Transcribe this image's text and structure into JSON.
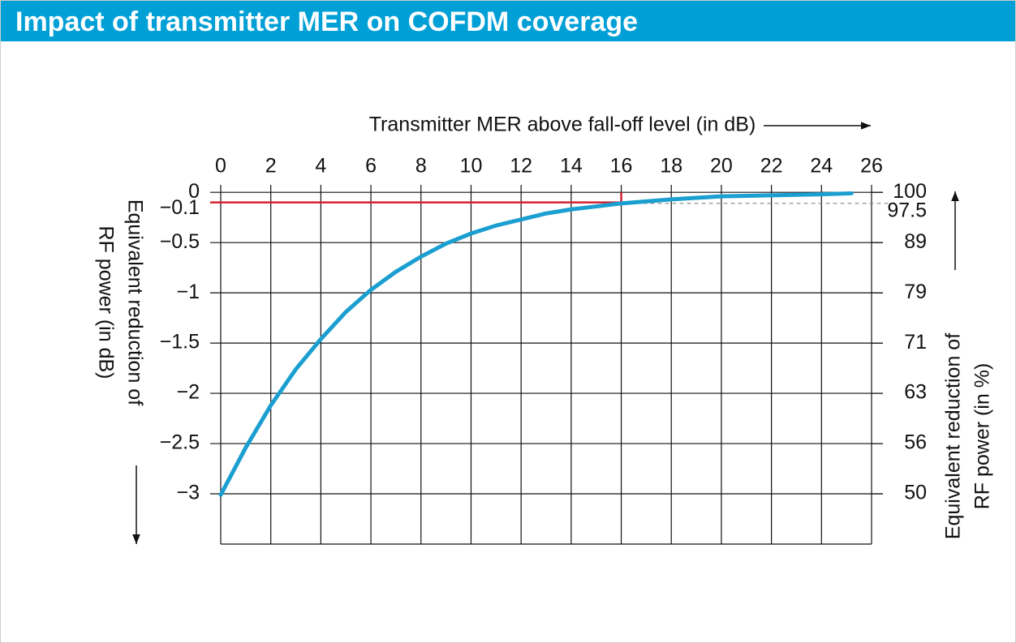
{
  "title": "Impact of transmitter MER on COFDM coverage",
  "chart_data": {
    "type": "line",
    "x_label": "Transmitter MER above fall-off level (in dB)",
    "y_label": [
      "Equivalent reduction of",
      "RF power (in dB)"
    ],
    "y2_label": [
      "Equivalent reduction of",
      "RF power (in %)"
    ],
    "x": [
      0,
      1,
      2,
      3,
      4,
      5,
      6,
      7,
      8,
      9,
      10,
      11,
      12,
      13,
      14,
      15,
      16,
      18,
      20,
      22,
      24,
      25.2
    ],
    "series": [
      {
        "color": "#1a9fd0",
        "values": [
          -3.01,
          -2.54,
          -2.12,
          -1.76,
          -1.46,
          -1.19,
          -0.97,
          -0.79,
          -0.64,
          -0.51,
          -0.41,
          -0.33,
          -0.27,
          -0.21,
          -0.17,
          -0.14,
          -0.11,
          -0.07,
          -0.04,
          -0.03,
          -0.02,
          -0.01
        ]
      }
    ],
    "xlim": [
      0,
      26
    ],
    "xticks": [
      0,
      2,
      4,
      6,
      8,
      10,
      12,
      14,
      16,
      18,
      20,
      22,
      24,
      26
    ],
    "ylim": [
      -3.5,
      0.05
    ],
    "yticks": [
      0,
      {
        "value": -0.5,
        "label": "−0.5"
      },
      {
        "value": -1,
        "label": "−1"
      },
      {
        "value": -1.5,
        "label": "−1.5"
      },
      {
        "value": -2,
        "label": "−2"
      },
      {
        "value": -2.5,
        "label": "−2.5"
      },
      {
        "value": -3,
        "label": "−3"
      }
    ],
    "y2scale": "log",
    "y2lim": [
      44.67,
      101.16
    ],
    "y2ticks": [
      {
        "value": 100,
        "label": "100"
      },
      {
        "value": 89.13,
        "label": "89"
      },
      {
        "value": 79.43,
        "label": "79"
      },
      {
        "value": 70.79,
        "label": "71"
      },
      {
        "value": 63.1,
        "label": "63"
      },
      {
        "value": 56.23,
        "label": "56"
      },
      {
        "value": 50.12,
        "label": "50"
      }
    ],
    "grid": true,
    "highlight": {
      "x": 16,
      "y": {
        "value": -0.1,
        "label": "−0.1"
      },
      "y2": 97.5,
      "color": "#d42030"
    }
  }
}
